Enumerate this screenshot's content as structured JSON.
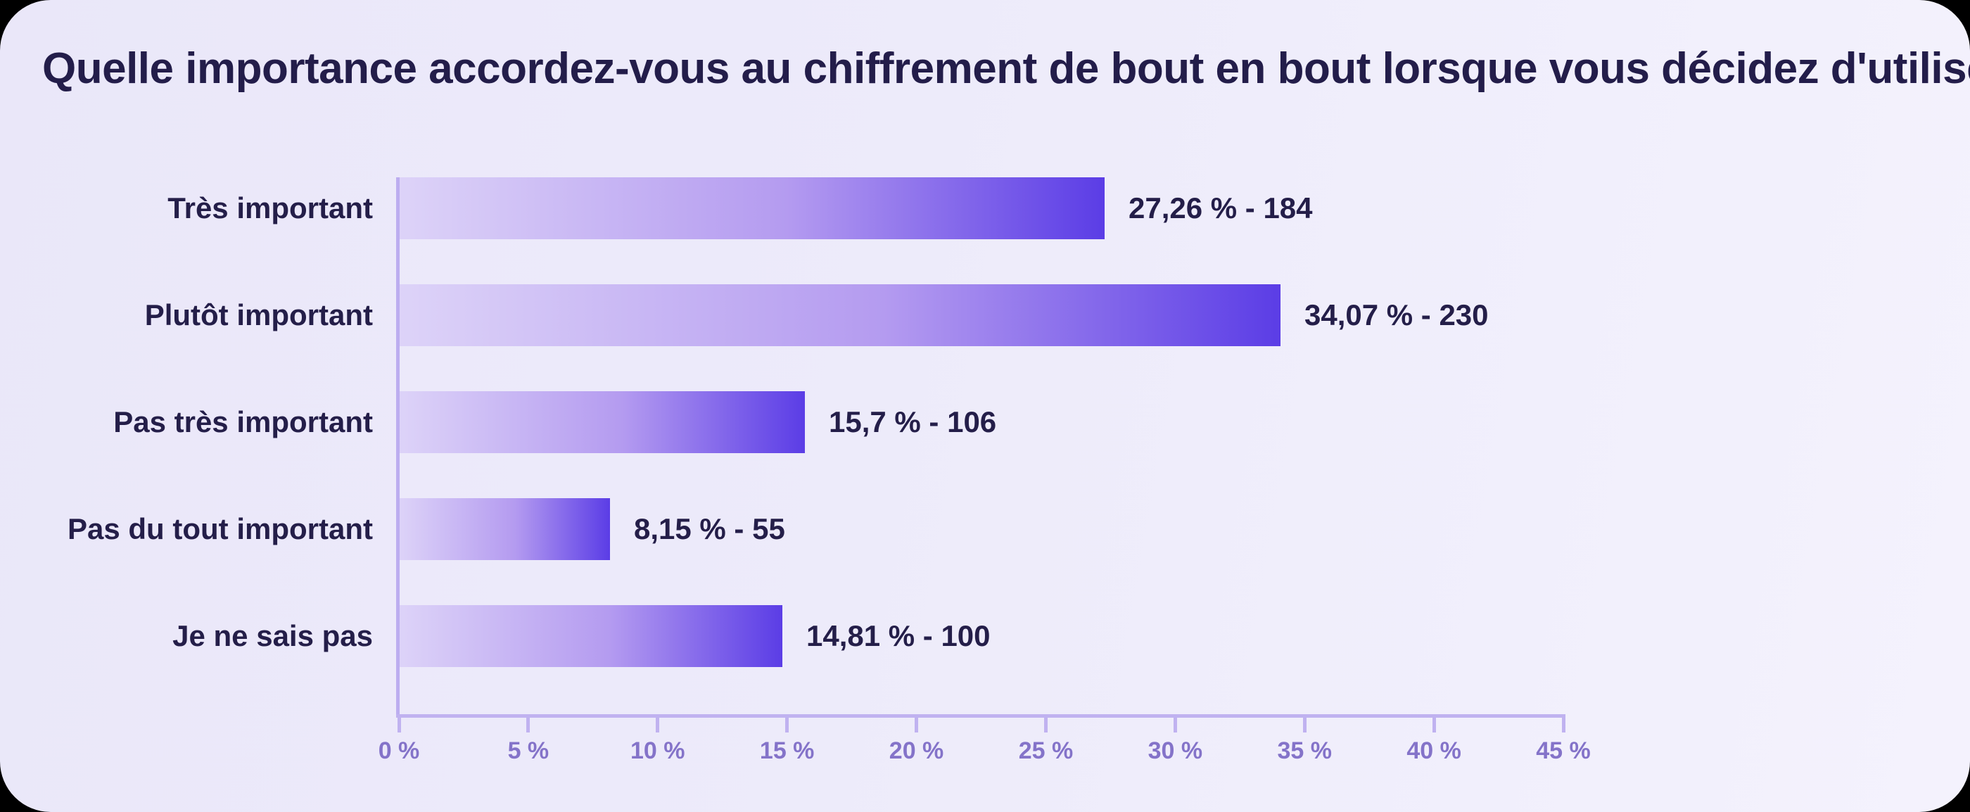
{
  "title": "Quelle importance accordez-vous au chiffrement de bout en bout lorsque vous décidez d'utiliser une application ?",
  "chart_data": {
    "type": "bar",
    "orientation": "horizontal",
    "title": "Quelle importance accordez-vous au chiffrement de bout en bout lorsque vous décidez d'utiliser une application ?",
    "categories": [
      "Très important",
      "Plutôt important",
      "Pas très important",
      "Pas du tout important",
      "Je ne sais pas"
    ],
    "values": [
      27.26,
      34.07,
      15.7,
      8.15,
      14.81
    ],
    "counts": [
      184,
      230,
      106,
      55,
      100
    ],
    "value_labels": [
      "27,26 % - 184",
      "34,07 % - 230",
      "15,7 % - 106",
      "8,15 % - 55",
      "14,81 % - 100"
    ],
    "xlabel": "",
    "ylabel": "",
    "xlim": [
      0,
      45
    ],
    "x_tick_values": [
      0,
      5,
      10,
      15,
      20,
      25,
      30,
      35,
      40,
      45
    ],
    "x_tick_labels": [
      "0 %",
      "5 %",
      "10 %",
      "15 %",
      "20 %",
      "25 %",
      "30 %",
      "35 %",
      "40 %",
      "45 %"
    ],
    "grid": false,
    "legend": "none"
  },
  "colors": {
    "outer_background": "#000000",
    "background_gradient_start": "#eae7f9",
    "background_gradient_end": "#f4f2fd",
    "bar_gradient_start": "#ddd3f8",
    "bar_gradient_end": "#5b3de6",
    "axis_line": "#c0b2f0",
    "tick_label": "#8473c9",
    "text_dark": "#241e49"
  }
}
